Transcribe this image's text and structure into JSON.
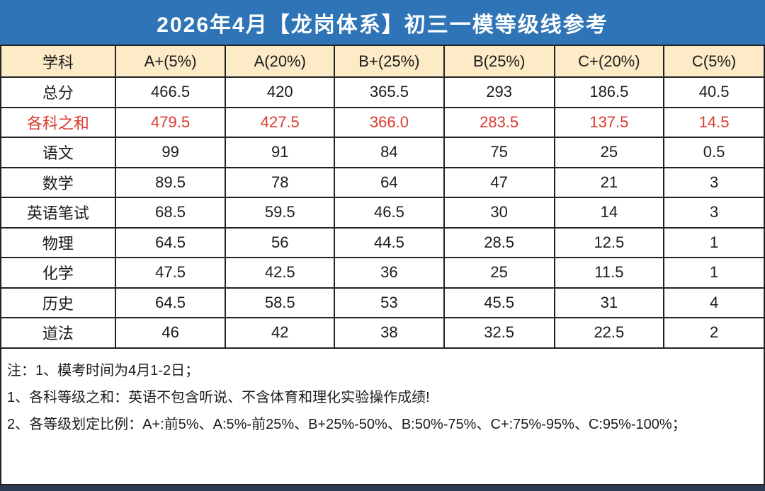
{
  "title": "2026年4月【龙岗体系】初三一模等级线参考",
  "colors": {
    "title_bar_bg": "#2e74b6",
    "title_text": "#ffffff",
    "header_row_bg": "#fdeac6",
    "highlight_row_text": "#db3a2c",
    "table_border": "#222222",
    "body_text": "#1c1c1c",
    "bottom_bar_bg": "#2b3a55"
  },
  "table": {
    "columns": [
      "学科",
      "A+(5%)",
      "A(20%)",
      "B+(25%)",
      "B(25%)",
      "C+(20%)",
      "C(5%)"
    ],
    "rows": [
      {
        "subject": "总分",
        "values": [
          "466.5",
          "420",
          "365.5",
          "293",
          "186.5",
          "40.5"
        ],
        "highlight": false
      },
      {
        "subject": "各科之和",
        "values": [
          "479.5",
          "427.5",
          "366.0",
          "283.5",
          "137.5",
          "14.5"
        ],
        "highlight": true
      },
      {
        "subject": "语文",
        "values": [
          "99",
          "91",
          "84",
          "75",
          "25",
          "0.5"
        ],
        "highlight": false
      },
      {
        "subject": "数学",
        "values": [
          "89.5",
          "78",
          "64",
          "47",
          "21",
          "3"
        ],
        "highlight": false
      },
      {
        "subject": "英语笔试",
        "values": [
          "68.5",
          "59.5",
          "46.5",
          "30",
          "14",
          "3"
        ],
        "highlight": false
      },
      {
        "subject": "物理",
        "values": [
          "64.5",
          "56",
          "44.5",
          "28.5",
          "12.5",
          "1"
        ],
        "highlight": false
      },
      {
        "subject": "化学",
        "values": [
          "47.5",
          "42.5",
          "36",
          "25",
          "11.5",
          "1"
        ],
        "highlight": false
      },
      {
        "subject": "历史",
        "values": [
          "64.5",
          "58.5",
          "53",
          "45.5",
          "31",
          "4"
        ],
        "highlight": false
      },
      {
        "subject": "道法",
        "values": [
          "46",
          "42",
          "38",
          "32.5",
          "22.5",
          "2"
        ],
        "highlight": false
      }
    ]
  },
  "notes": [
    "注：1、模考时间为4月1-2日；",
    "1、各科等级之和：英语不包含听说、不含体育和理化实验操作成绩!",
    "2、各等级划定比例：A+:前5%、A:5%-前25%、B+25%-50%、B:50%-75%、C+:75%-95%、C:95%-100%；"
  ]
}
